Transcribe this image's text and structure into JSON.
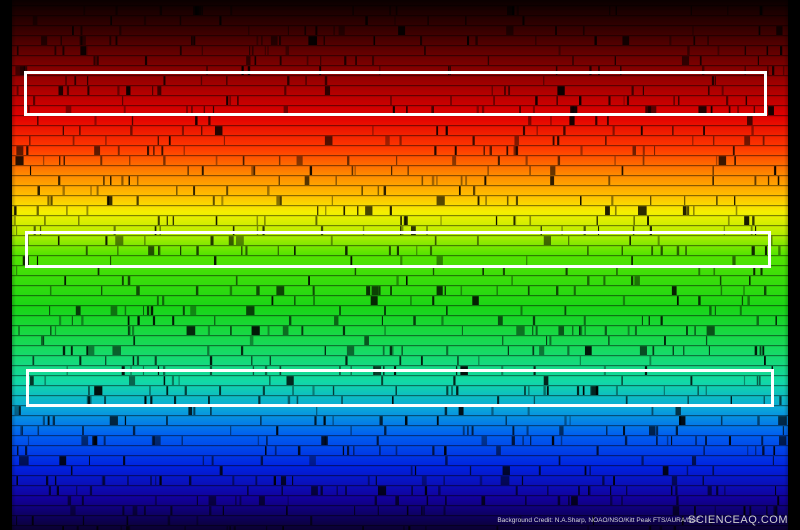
{
  "image": {
    "subject": "solar-spectrum",
    "highlight_boxes": [
      "red-band",
      "green-band",
      "cyan-band"
    ],
    "highlight_color": "#ffffff",
    "background_color": "#000000"
  },
  "credit": {
    "text": "Background Credit: N.A.Sharp, NOAO/NSO/Kitt Peak FTS/AURA/NSF"
  },
  "watermark": {
    "text": "SCIENCEAQ.COM"
  }
}
